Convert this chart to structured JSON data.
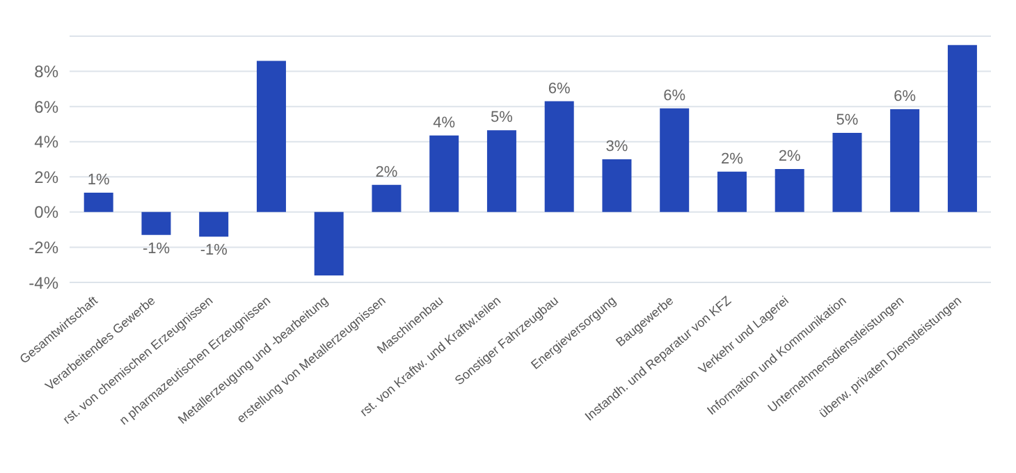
{
  "chart_data": {
    "type": "bar",
    "categories": [
      "Gesamtwirtschaft",
      "Verarbeitendes Gewerbe",
      "rst. von chemischen Erzeugnissen",
      "n pharmazeutischen Erzeugnissen",
      "Metallerzeugung und -bearbeitung",
      "erstellung von Metallerzeugnissen",
      "Maschinenbau",
      "rst. von Kraftw. und Kraftw.teilen",
      "Sonstiger Fahrzeugbau",
      "Energieversorgung",
      "Baugewerbe",
      "Instandh. und Reparatur von KFZ",
      "Verkehr und Lagerei",
      "Information und Kommunikation",
      "Unternehmensdienstleistungen",
      "überw. privaten Dienstleistungen"
    ],
    "values": [
      1.1,
      -1.3,
      -1.4,
      8.6,
      -3.6,
      1.55,
      4.35,
      4.65,
      6.3,
      3.0,
      5.9,
      2.3,
      2.45,
      4.5,
      5.85,
      9.5
    ],
    "value_labels": [
      "1%",
      "-1%",
      "-1%",
      null,
      null,
      "2%",
      "4%",
      "5%",
      "6%",
      "3%",
      "6%",
      "2%",
      "2%",
      "5%",
      "6%",
      null
    ],
    "color": "#2448b8",
    "ylim": [
      -4,
      10
    ],
    "yticks": [
      {
        "value": -4,
        "label": "-4%"
      },
      {
        "value": -2,
        "label": "-2%"
      },
      {
        "value": 0,
        "label": "0%"
      },
      {
        "value": 2,
        "label": "2%"
      },
      {
        "value": 4,
        "label": "4%"
      },
      {
        "value": 6,
        "label": "6%"
      },
      {
        "value": 8,
        "label": "8%"
      }
    ],
    "grid": "y"
  }
}
